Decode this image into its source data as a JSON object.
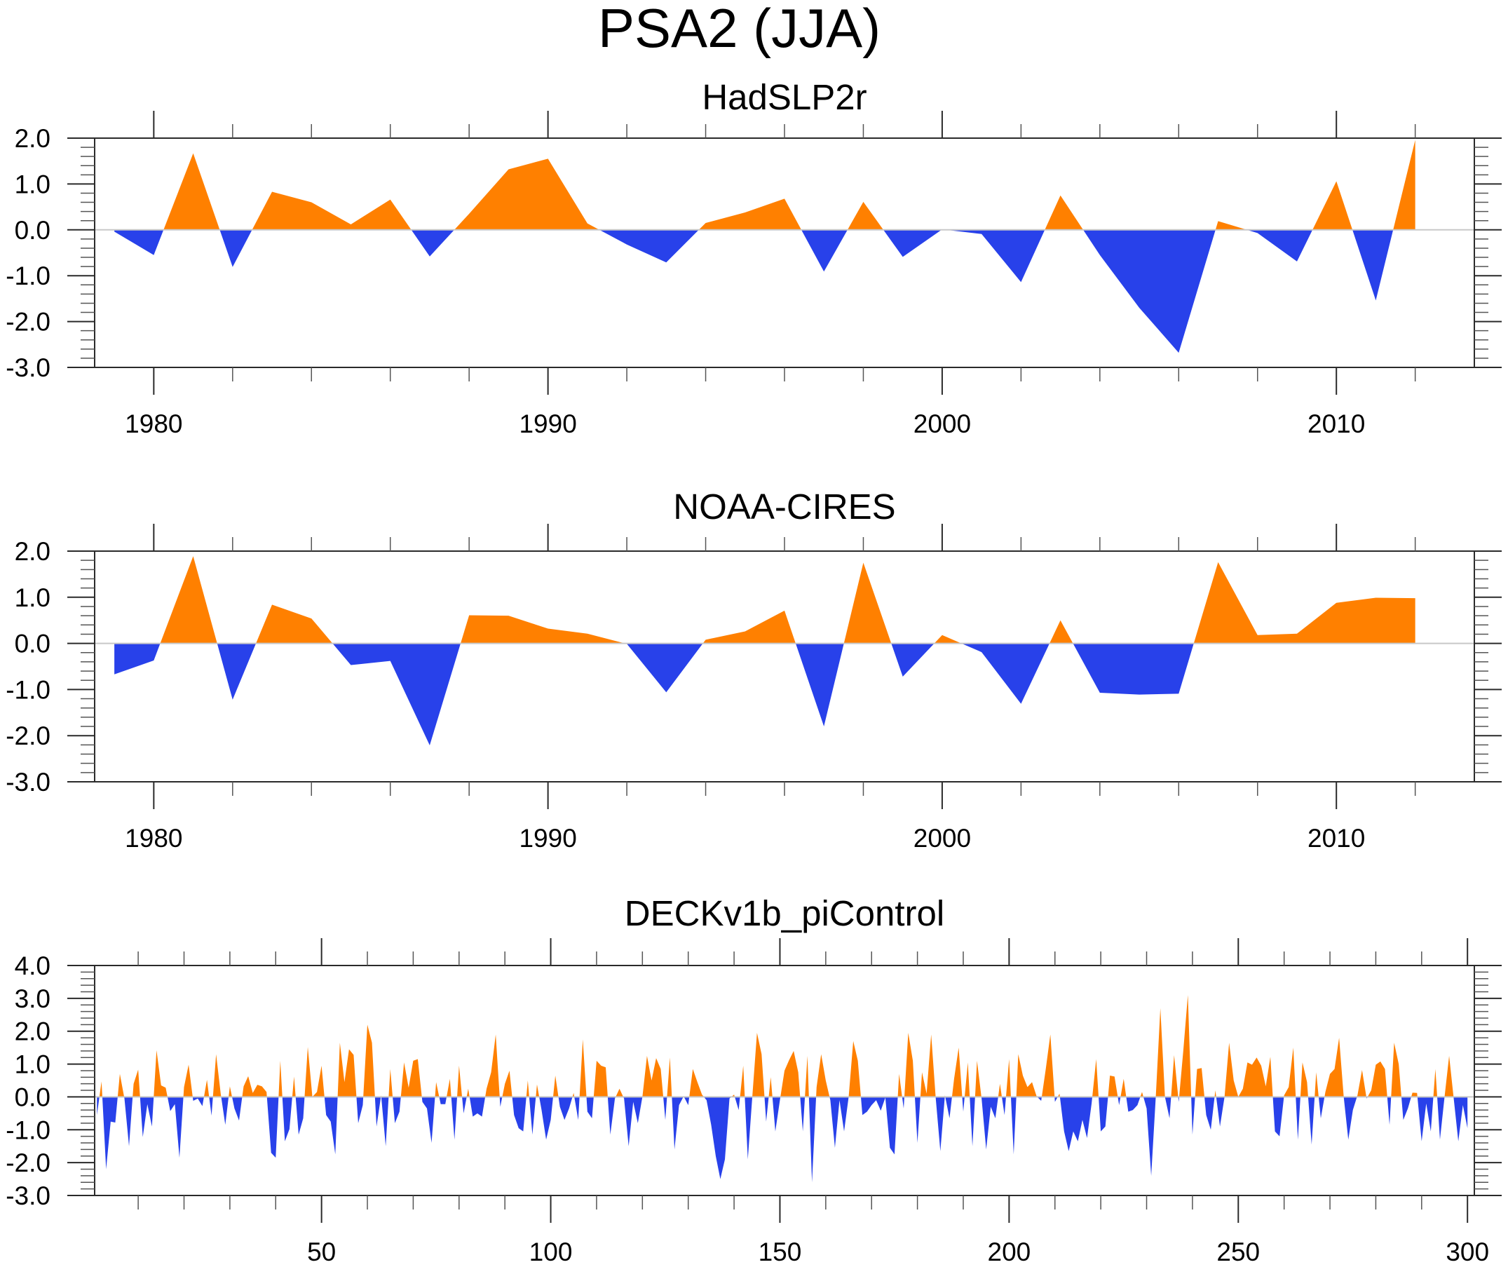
{
  "title": "PSA2 (JJA)",
  "colors": {
    "positive": "#FF8000",
    "negative": "#2841EA",
    "zero_line": "#C8C8C8",
    "axis": "#2A2A2A"
  },
  "chart_data": [
    {
      "type": "area",
      "title": "HadSLP2r",
      "xlabel": "",
      "ylabel": "",
      "xlim": [
        1978.5,
        2013.5
      ],
      "ylim": [
        -3.0,
        2.0
      ],
      "xticks_major": [
        1980,
        1990,
        2000,
        2010
      ],
      "xtick_labels": [
        "1980",
        "1990",
        "2000",
        "2010"
      ],
      "xticks_minor_step": 2,
      "yticks_major": [
        2.0,
        1.0,
        0.0,
        -1.0,
        -2.0,
        -3.0
      ],
      "ytick_labels": [
        "2.0",
        "1.0",
        "0.0",
        "-1.0",
        "-2.0",
        "-3.0"
      ],
      "yticks_minor_step": 0.2,
      "reference_line": 0.0,
      "grid": false,
      "legend": "none",
      "x": [
        1979,
        1980,
        1981,
        1982,
        1983,
        1984,
        1985,
        1986,
        1987,
        1988,
        1989,
        1990,
        1991,
        1992,
        1993,
        1994,
        1995,
        1996,
        1997,
        1998,
        1999,
        2000,
        2001,
        2002,
        2003,
        2004,
        2005,
        2006,
        2007,
        2008,
        2009,
        2010,
        2011,
        2012
      ],
      "values": [
        -0.04,
        -0.55,
        1.67,
        -0.81,
        0.83,
        0.6,
        0.12,
        0.66,
        -0.58,
        0.35,
        1.32,
        1.55,
        0.14,
        -0.32,
        -0.71,
        0.15,
        0.38,
        0.68,
        -0.91,
        0.61,
        -0.59,
        0.01,
        -0.09,
        -1.14,
        0.75,
        -0.55,
        -1.7,
        -2.68,
        0.19,
        -0.07,
        -0.69,
        1.06,
        -1.54,
        1.96
      ]
    },
    {
      "type": "area",
      "title": "NOAA-CIRES",
      "xlabel": "",
      "ylabel": "",
      "xlim": [
        1978.5,
        2013.5
      ],
      "ylim": [
        -3.0,
        2.0
      ],
      "xticks_major": [
        1980,
        1990,
        2000,
        2010
      ],
      "xtick_labels": [
        "1980",
        "1990",
        "2000",
        "2010"
      ],
      "xticks_minor_step": 2,
      "yticks_major": [
        2.0,
        1.0,
        0.0,
        -1.0,
        -2.0,
        -3.0
      ],
      "ytick_labels": [
        "2.0",
        "1.0",
        "0.0",
        "-1.0",
        "-2.0",
        "-3.0"
      ],
      "yticks_minor_step": 0.2,
      "reference_line": 0.0,
      "grid": false,
      "legend": "none",
      "x": [
        1979,
        1980,
        1981,
        1982,
        1983,
        1984,
        1985,
        1986,
        1987,
        1988,
        1989,
        1990,
        1991,
        1992,
        1993,
        1994,
        1995,
        1996,
        1997,
        1998,
        1999,
        2000,
        2001,
        2002,
        2003,
        2004,
        2005,
        2006,
        2007,
        2008,
        2009,
        2010,
        2011,
        2012
      ],
      "values": [
        -0.67,
        -0.37,
        1.89,
        -1.22,
        0.84,
        0.54,
        -0.47,
        -0.38,
        -2.21,
        0.61,
        0.6,
        0.32,
        0.21,
        -0.01,
        -1.06,
        0.08,
        0.26,
        0.71,
        -1.8,
        1.75,
        -0.72,
        0.18,
        -0.19,
        -1.31,
        0.5,
        -1.07,
        -1.11,
        -1.09,
        1.76,
        0.18,
        0.21,
        0.88,
        0.99,
        0.98
      ]
    },
    {
      "type": "area",
      "title": "DECKv1b_piControl",
      "xlabel": "",
      "ylabel": "",
      "xlim": [
        0.5,
        301.5
      ],
      "ylim": [
        -3.0,
        4.0
      ],
      "xticks_major": [
        50,
        100,
        150,
        200,
        250,
        300
      ],
      "xtick_labels": [
        "50",
        "100",
        "150",
        "200",
        "250",
        "300"
      ],
      "xticks_minor_step": 10,
      "yticks_major": [
        4.0,
        3.0,
        2.0,
        1.0,
        0.0,
        -1.0,
        -2.0,
        -3.0
      ],
      "ytick_labels": [
        "4.0",
        "3.0",
        "2.0",
        "1.0",
        "0.0",
        "-1.0",
        "-2.0",
        "-3.0"
      ],
      "yticks_minor_step": 0.2,
      "reference_line": 0.0,
      "grid": false,
      "legend": "none",
      "x_start": 1,
      "x_step": 1,
      "values": [
        -0.55,
        0.47,
        -2.2,
        -0.75,
        -0.78,
        0.7,
        -0.05,
        -1.5,
        0.4,
        0.83,
        -1.22,
        -0.22,
        -0.9,
        1.42,
        0.35,
        0.28,
        -0.43,
        -0.22,
        -1.85,
        0.3,
        0.98,
        -0.12,
        -0.05,
        -0.28,
        0.52,
        -0.57,
        1.3,
        0.1,
        -0.85,
        0.32,
        -0.35,
        -0.72,
        0.32,
        0.63,
        0.12,
        0.37,
        0.32,
        0.15,
        -1.7,
        -1.85,
        1.1,
        -1.35,
        -0.98,
        0.62,
        -1.15,
        -0.65,
        1.52,
        0.0,
        0.15,
        0.95,
        -0.55,
        -0.75,
        -1.75,
        1.65,
        0.45,
        1.45,
        1.28,
        -0.8,
        -0.25,
        2.2,
        1.65,
        -0.9,
        0.05,
        -1.5,
        0.85,
        -0.8,
        -0.45,
        1.05,
        0.28,
        1.1,
        1.15,
        -0.15,
        -0.35,
        -1.4,
        0.45,
        -0.22,
        -0.22,
        0.55,
        -1.3,
        0.95,
        -0.5,
        0.25,
        -0.6,
        -0.5,
        -0.6,
        0.25,
        0.75,
        1.9,
        -0.3,
        0.4,
        0.8,
        -0.55,
        -0.95,
        -1.05,
        0.5,
        -1.15,
        0.38,
        -0.4,
        -1.3,
        -0.7,
        0.65,
        -0.3,
        -0.7,
        -0.35,
        0.12,
        -0.7,
        1.75,
        -0.45,
        -0.65,
        1.1,
        0.95,
        0.9,
        -1.15,
        -0.05,
        0.25,
        -0.05,
        -1.5,
        -0.15,
        -0.8,
        0.0,
        1.25,
        0.5,
        1.18,
        0.85,
        -0.7,
        1.2,
        -1.6,
        -0.25,
        0.02,
        -0.25,
        0.85,
        0.45,
        0.07,
        -0.1,
        -0.85,
        -1.8,
        -2.5,
        -1.9,
        -0.05,
        0.07,
        -0.4,
        0.95,
        -1.9,
        0.05,
        1.95,
        1.3,
        -0.75,
        0.6,
        -1.05,
        -0.1,
        0.8,
        1.12,
        1.4,
        0.75,
        -1.05,
        1.25,
        -2.6,
        0.3,
        1.3,
        0.5,
        -0.1,
        -1.55,
        -0.1,
        -1.05,
        0.0,
        1.7,
        1.1,
        -0.55,
        -0.45,
        -0.25,
        -0.1,
        -0.42,
        -0.02,
        -1.55,
        -1.75,
        0.7,
        -0.35,
        1.95,
        1.1,
        -1.4,
        0.75,
        0.1,
        1.9,
        -0.05,
        -1.65,
        0.05,
        -0.65,
        0.55,
        1.5,
        -0.45,
        1.05,
        -1.5,
        1.1,
        -0.05,
        -1.6,
        -0.3,
        -0.65,
        0.4,
        -0.55,
        1.15,
        -1.75,
        1.3,
        0.65,
        0.3,
        0.45,
        0.02,
        -0.12,
        0.85,
        1.9,
        -0.15,
        0.1,
        -1.05,
        -1.65,
        -1.05,
        -1.35,
        -0.7,
        -1.25,
        -0.2,
        1.15,
        -1.05,
        -0.9,
        0.65,
        0.62,
        -0.25,
        0.55,
        -0.45,
        -0.4,
        -0.25,
        0.15,
        -0.35,
        -2.4,
        0.0,
        2.7,
        0.0,
        -0.65,
        1.27,
        -0.15,
        1.4,
        3.1,
        -1.15,
        0.85,
        0.88,
        -0.55,
        -1.0,
        0.2,
        -0.9,
        0.0,
        1.65,
        0.5,
        0.0,
        0.25,
        1.05,
        0.98,
        1.2,
        0.95,
        0.32,
        1.22,
        -1.05,
        -1.2,
        0.05,
        0.3,
        1.5,
        -1.3,
        1.05,
        0.45,
        -1.45,
        0.75,
        -0.65,
        0.15,
        0.7,
        0.85,
        1.8,
        0.0,
        -1.3,
        -0.4,
        0.05,
        0.82,
        -0.05,
        0.2,
        0.98,
        1.08,
        0.85,
        -0.85,
        1.65,
        1.0,
        -0.7,
        -0.35,
        0.13,
        0.12,
        -1.35,
        -0.2,
        -1.05,
        0.85,
        -1.3,
        0.0,
        1.25,
        -0.05,
        -1.35,
        -0.25,
        -0.95
      ]
    }
  ]
}
